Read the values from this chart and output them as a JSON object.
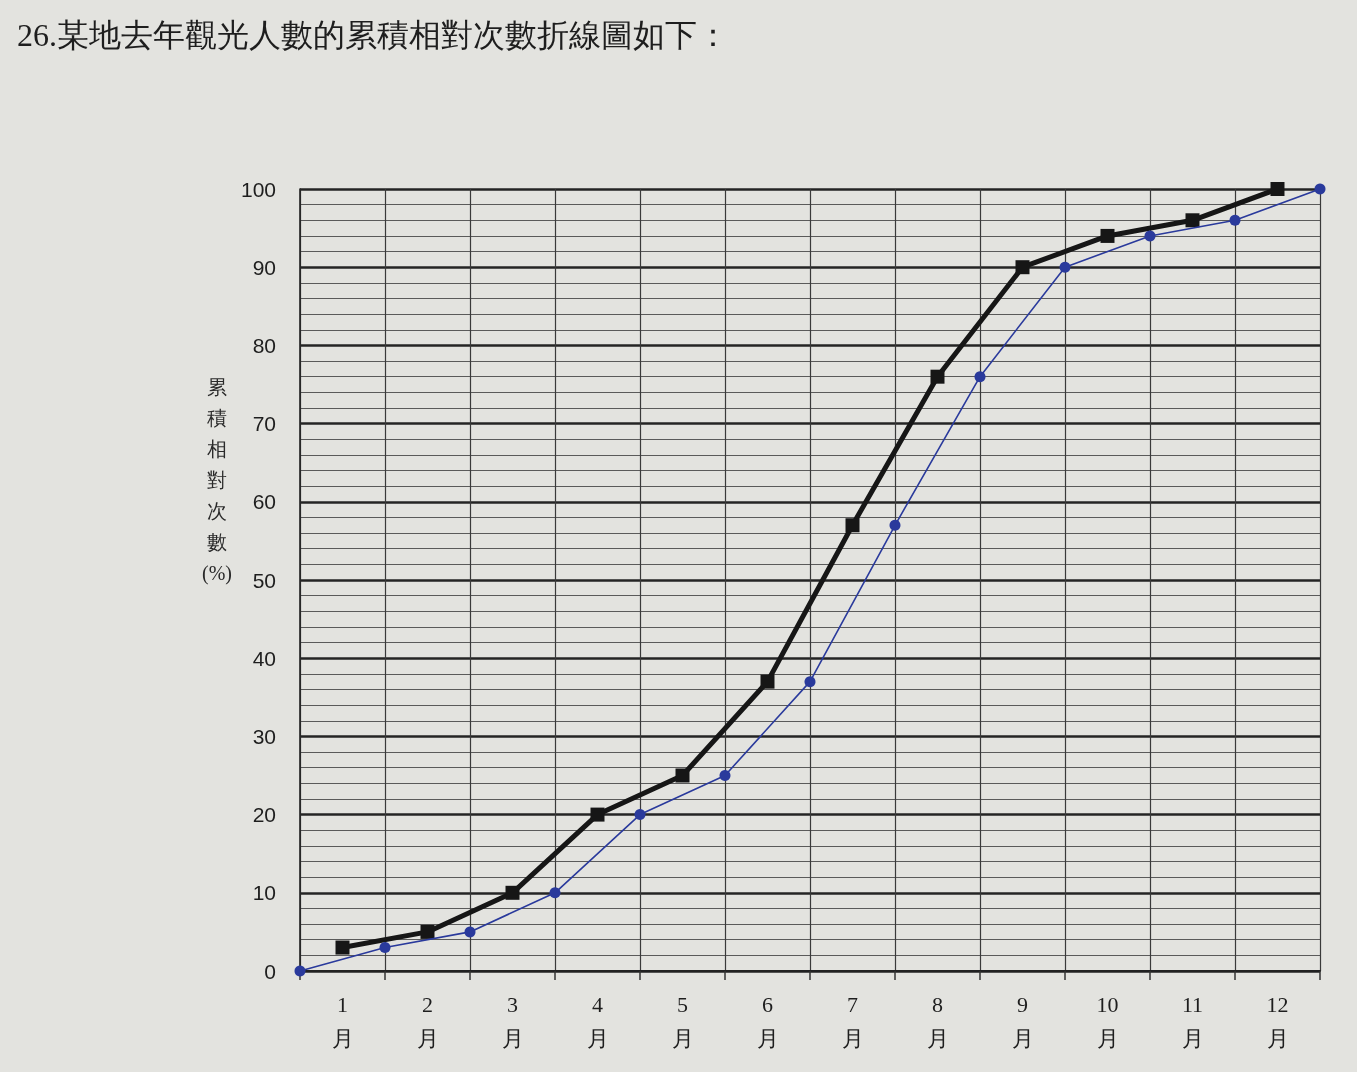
{
  "chart_data": {
    "type": "line",
    "title": "26.某地去年觀光人數的累積相對次數折線圖如下：",
    "ylabel": "累積相對次數(%)",
    "xlim": [
      0,
      12
    ],
    "xticks": [
      {
        "value": 0,
        "label": null
      },
      {
        "value": 0.5,
        "label": "1月"
      },
      {
        "value": 1,
        "label": null
      },
      {
        "value": 1.5,
        "label": "2月"
      },
      {
        "value": 2,
        "label": null
      },
      {
        "value": 2.5,
        "label": "3月"
      },
      {
        "value": 3,
        "label": null
      },
      {
        "value": 3.5,
        "label": "4月"
      },
      {
        "value": 4,
        "label": null
      },
      {
        "value": 4.5,
        "label": "5月"
      },
      {
        "value": 5,
        "label": null
      },
      {
        "value": 5.5,
        "label": "6月"
      },
      {
        "value": 6,
        "label": null
      },
      {
        "value": 6.5,
        "label": "7月"
      },
      {
        "value": 7,
        "label": null
      },
      {
        "value": 7.5,
        "label": "8月"
      },
      {
        "value": 8,
        "label": null
      },
      {
        "value": 8.5,
        "label": "9月"
      },
      {
        "value": 9,
        "label": null
      },
      {
        "value": 9.5,
        "label": "10月"
      },
      {
        "value": 10,
        "label": null
      },
      {
        "value": 10.5,
        "label": "11月"
      },
      {
        "value": 11,
        "label": null
      },
      {
        "value": 11.5,
        "label": "12月"
      },
      {
        "value": 12,
        "label": null
      }
    ],
    "ylim": [
      0,
      100
    ],
    "yticks": [
      0,
      {
        "value": 2,
        "label": null
      },
      {
        "value": 4,
        "label": null
      },
      {
        "value": 6,
        "label": null
      },
      {
        "value": 8,
        "label": null
      },
      10,
      {
        "value": 12,
        "label": null
      },
      {
        "value": 14,
        "label": null
      },
      {
        "value": 16,
        "label": null
      },
      {
        "value": 18,
        "label": null
      },
      20,
      {
        "value": 22,
        "label": null
      },
      {
        "value": 24,
        "label": null
      },
      {
        "value": 26,
        "label": null
      },
      {
        "value": 28,
        "label": null
      },
      30,
      {
        "value": 32,
        "label": null
      },
      {
        "value": 34,
        "label": null
      },
      {
        "value": 36,
        "label": null
      },
      {
        "value": 38,
        "label": null
      },
      40,
      {
        "value": 42,
        "label": null
      },
      {
        "value": 44,
        "label": null
      },
      {
        "value": 46,
        "label": null
      },
      {
        "value": 48,
        "label": null
      },
      50,
      {
        "value": 52,
        "label": null
      },
      {
        "value": 54,
        "label": null
      },
      {
        "value": 56,
        "label": null
      },
      {
        "value": 58,
        "label": null
      },
      60,
      {
        "value": 62,
        "label": null
      },
      {
        "value": 64,
        "label": null
      },
      {
        "value": 66,
        "label": null
      },
      {
        "value": 68,
        "label": null
      },
      70,
      {
        "value": 72,
        "label": null
      },
      {
        "value": 74,
        "label": null
      },
      {
        "value": 76,
        "label": null
      },
      {
        "value": 78,
        "label": null
      },
      80,
      {
        "value": 82,
        "label": null
      },
      {
        "value": 84,
        "label": null
      },
      {
        "value": 86,
        "label": null
      },
      {
        "value": 88,
        "label": null
      },
      90,
      {
        "value": 92,
        "label": null
      },
      {
        "value": 94,
        "label": null
      },
      {
        "value": 96,
        "label": null
      },
      {
        "value": 98,
        "label": null
      },
      100
    ],
    "grid": true,
    "series": [
      {
        "color": "#161616",
        "marker": "square",
        "x": [
          0.5,
          1.5,
          2.5,
          3.5,
          4.5,
          5.5,
          6.5,
          7.5,
          8.5,
          9.5,
          10.5,
          11.5
        ],
        "values": [
          3,
          5,
          10,
          20,
          25,
          37,
          57,
          76,
          90,
          94,
          96,
          100
        ]
      },
      {
        "color": "#2a3a9c",
        "marker": "circle",
        "x": [
          0,
          1,
          2,
          3,
          4,
          5,
          6,
          7,
          8,
          9,
          10,
          11,
          12
        ],
        "values": [
          0,
          3,
          5,
          10,
          20,
          25,
          37,
          57,
          76,
          90,
          94,
          96,
          100
        ]
      }
    ]
  }
}
